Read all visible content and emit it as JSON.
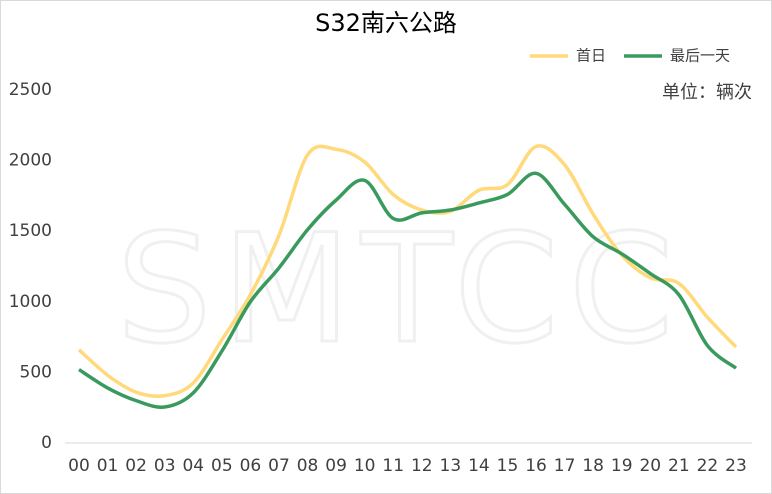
{
  "chart_data": {
    "type": "line",
    "title": "S32南六公路",
    "unit_label": "单位：辆次",
    "watermark": "SMTCC",
    "categories": [
      "00",
      "01",
      "02",
      "03",
      "04",
      "05",
      "06",
      "07",
      "08",
      "09",
      "10",
      "11",
      "12",
      "13",
      "14",
      "15",
      "16",
      "17",
      "18",
      "19",
      "20",
      "21",
      "22",
      "23"
    ],
    "series": [
      {
        "name": "首日",
        "color": "#ffd97a",
        "values": [
          660,
          480,
          360,
          335,
          425,
          730,
          1050,
          1470,
          2040,
          2080,
          1990,
          1760,
          1650,
          1640,
          1790,
          1830,
          2100,
          1970,
          1620,
          1330,
          1170,
          1130,
          890,
          680
        ]
      },
      {
        "name": "最后一天",
        "color": "#3a9a5e",
        "values": [
          520,
          390,
          300,
          255,
          355,
          650,
          1000,
          1240,
          1510,
          1720,
          1860,
          1590,
          1630,
          1650,
          1700,
          1760,
          1910,
          1690,
          1460,
          1340,
          1200,
          1050,
          690,
          530
        ]
      }
    ],
    "ylim": [
      0,
      2500
    ],
    "yticks": [
      0,
      500,
      1000,
      1500,
      2000,
      2500
    ],
    "smooth": true,
    "legend": "top-right"
  }
}
